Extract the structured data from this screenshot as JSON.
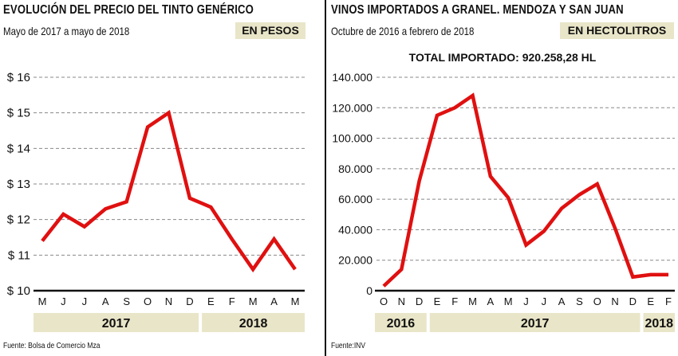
{
  "chart_data": [
    {
      "type": "line",
      "title": "EVOLUCIÓN DEL PRECIO DEL TINTO GENÉRICO",
      "subtitle": "Mayo de 2017 a mayo de 2018",
      "unit_badge": "EN PESOS",
      "categories": [
        "M",
        "J",
        "J",
        "A",
        "S",
        "O",
        "N",
        "D",
        "E",
        "F",
        "M",
        "A",
        "M"
      ],
      "years": [
        {
          "label": "2017",
          "from": 0,
          "to": 7
        },
        {
          "label": "2018",
          "from": 8,
          "to": 12
        }
      ],
      "values": [
        11.4,
        12.15,
        11.8,
        12.3,
        12.5,
        14.6,
        15.0,
        12.6,
        12.35,
        11.45,
        10.6,
        11.45,
        10.6
      ],
      "yticks": [
        10,
        11,
        12,
        13,
        14,
        15,
        16
      ],
      "ytick_labels": [
        "$ 10",
        "$ 11",
        "$ 12",
        "$ 13",
        "$ 14",
        "$ 15",
        "$ 16"
      ],
      "ylim": [
        10,
        16
      ],
      "grid": true,
      "source": "Fuente: Bolsa de Comercio Mza",
      "color": "#e01010"
    },
    {
      "type": "line",
      "title": "VINOS IMPORTADOS A GRANEL. MENDOZA Y SAN JUAN",
      "subtitle": "Octubre de 2016 a febrero de 2018",
      "unit_badge": "EN HECTOLITROS",
      "annotation": "TOTAL IMPORTADO: 920.258,28 HL",
      "categories": [
        "O",
        "N",
        "D",
        "E",
        "F",
        "M",
        "A",
        "M",
        "J",
        "J",
        "A",
        "S",
        "O",
        "N",
        "D",
        "E",
        "F"
      ],
      "years": [
        {
          "label": "2016",
          "from": 0,
          "to": 2
        },
        {
          "label": "2017",
          "from": 3,
          "to": 14
        },
        {
          "label": "2018",
          "from": 15,
          "to": 16
        }
      ],
      "values": [
        3000,
        14000,
        72000,
        115000,
        120000,
        128000,
        75000,
        61000,
        30000,
        39000,
        54000,
        63000,
        70000,
        41000,
        9000,
        10500,
        10500
      ],
      "yticks": [
        0,
        20000,
        40000,
        60000,
        80000,
        100000,
        120000,
        140000
      ],
      "ytick_labels": [
        "0",
        "20.000",
        "40.000",
        "60.000",
        "80.000",
        "100.000",
        "120.000",
        "140.000"
      ],
      "ylim": [
        0,
        140000
      ],
      "grid": true,
      "source": "Fuente:INV",
      "color": "#e01010"
    }
  ]
}
